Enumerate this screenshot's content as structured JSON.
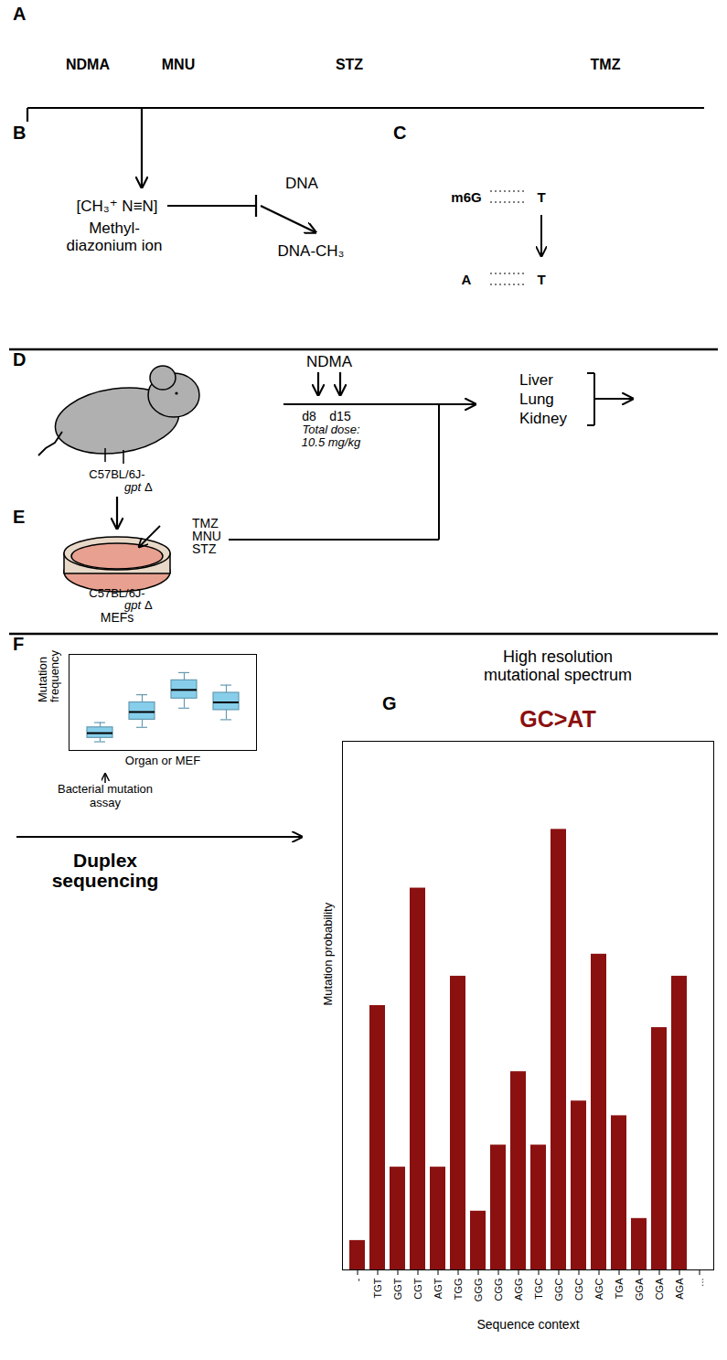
{
  "chart_data": [
    {
      "type": "diagram",
      "title": "A",
      "annotations": [
        "NDMA",
        "MNU",
        "STZ",
        "TMZ"
      ]
    },
    {
      "type": "diagram",
      "title": "B",
      "annotations": [
        "[CH₃⁺ N≡N]",
        "Methyl-",
        "diazonium ion",
        "DNA",
        "DNA-CH₃"
      ]
    },
    {
      "type": "diagram",
      "title": "C",
      "annotations": [
        "m6G",
        "T",
        "A",
        "T"
      ]
    },
    {
      "type": "diagram",
      "title": "D",
      "annotations": [
        "C57BL/6J-",
        "gpt",
        "Δ",
        "NDMA",
        "d8",
        "d15",
        "Total dose:",
        "10.5 mg/kg",
        "Liver",
        "Lung",
        "Kidney"
      ]
    },
    {
      "type": "diagram",
      "title": "E",
      "annotations": [
        "TMZ",
        "MNU",
        "STZ",
        "C57BL/6J-",
        "gpt",
        "Δ",
        "MEFs"
      ]
    },
    {
      "type": "box",
      "title": "F",
      "xlabel": "Organ or MEF",
      "ylabel": "Mutation\nfrequency",
      "categories": [
        null,
        null,
        null,
        null
      ],
      "values": [
        0.18,
        0.4,
        0.63,
        0.5
      ],
      "q1": [
        0.13,
        0.32,
        0.54,
        0.42
      ],
      "q3": [
        0.24,
        0.5,
        0.73,
        0.6
      ],
      "whisker_low": [
        0.09,
        0.24,
        0.44,
        0.32
      ],
      "whisker_high": [
        0.29,
        0.58,
        0.81,
        0.68
      ],
      "ylim": [
        0,
        1
      ],
      "yticks": [],
      "tick_labels": false,
      "color": "#87CEEB",
      "annotations": [
        "Bacterial mutation",
        "assay",
        "Duplex",
        "sequencing"
      ]
    },
    {
      "type": "bar",
      "title": "GC>AT",
      "annotations": [
        "G",
        "High resolution",
        "mutational spectrum"
      ],
      "xlabel": "Sequence context",
      "ylabel": "Mutation probability",
      "categories": [
        "-",
        "TGT",
        "GGT",
        "CGT",
        "AGT",
        "TGG",
        "GGG",
        "CGG",
        "AGG",
        "TGC",
        "GGC",
        "CGC",
        "AGC",
        "TGA",
        "GGA",
        "CGA",
        "AGA",
        "..."
      ],
      "values": [
        0.04,
        0.36,
        0.14,
        0.52,
        0.14,
        0.4,
        0.08,
        0.17,
        0.27,
        0.17,
        0.6,
        0.23,
        0.43,
        0.21,
        0.07,
        0.33,
        0.4,
        0.0
      ],
      "color": "#8B1010",
      "ylim": [
        0,
        0.72
      ],
      "yticks": [],
      "tick_labels": "x"
    }
  ]
}
